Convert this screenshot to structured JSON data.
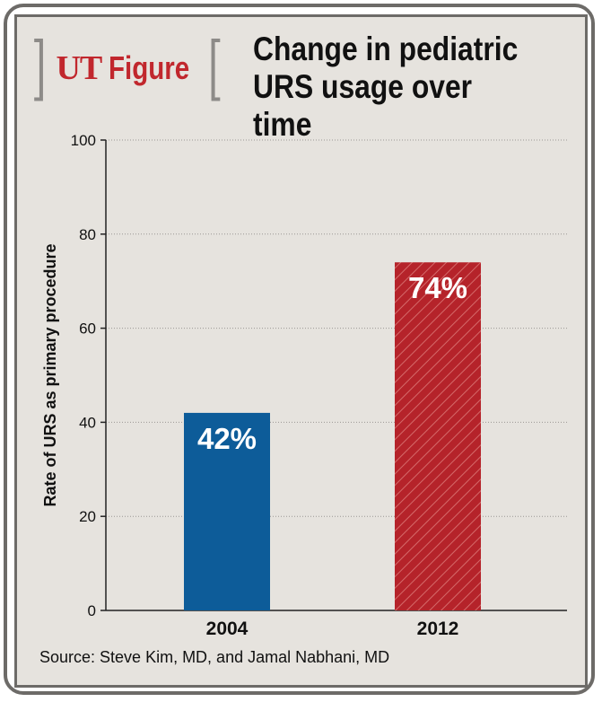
{
  "brand": {
    "ut": "UT",
    "figure": "Figure",
    "bracket_left": "]",
    "bracket_right": "["
  },
  "title": "Change in pediatric URS usage over time",
  "source": "Source: Steve Kim, MD, and Jamal Nabhani, MD",
  "colors": {
    "bar_2004": "#0d5c99",
    "bar_2012": "#b5232a",
    "brand_red": "#c1272d",
    "frame": "#6d6b68",
    "panel": "#e6e3de"
  },
  "chart_data": {
    "type": "bar",
    "categories": [
      "2004",
      "2012"
    ],
    "values": [
      42,
      74
    ],
    "data_labels": [
      "42%",
      "74%"
    ],
    "ylabel": "Rate of URS as primary procedure",
    "xlabel": "",
    "ylim": [
      0,
      100
    ],
    "yticks": [
      "0",
      "20",
      "40",
      "60",
      "80",
      "100"
    ],
    "grid": true,
    "patterns": [
      "solid",
      "hatched"
    ]
  }
}
